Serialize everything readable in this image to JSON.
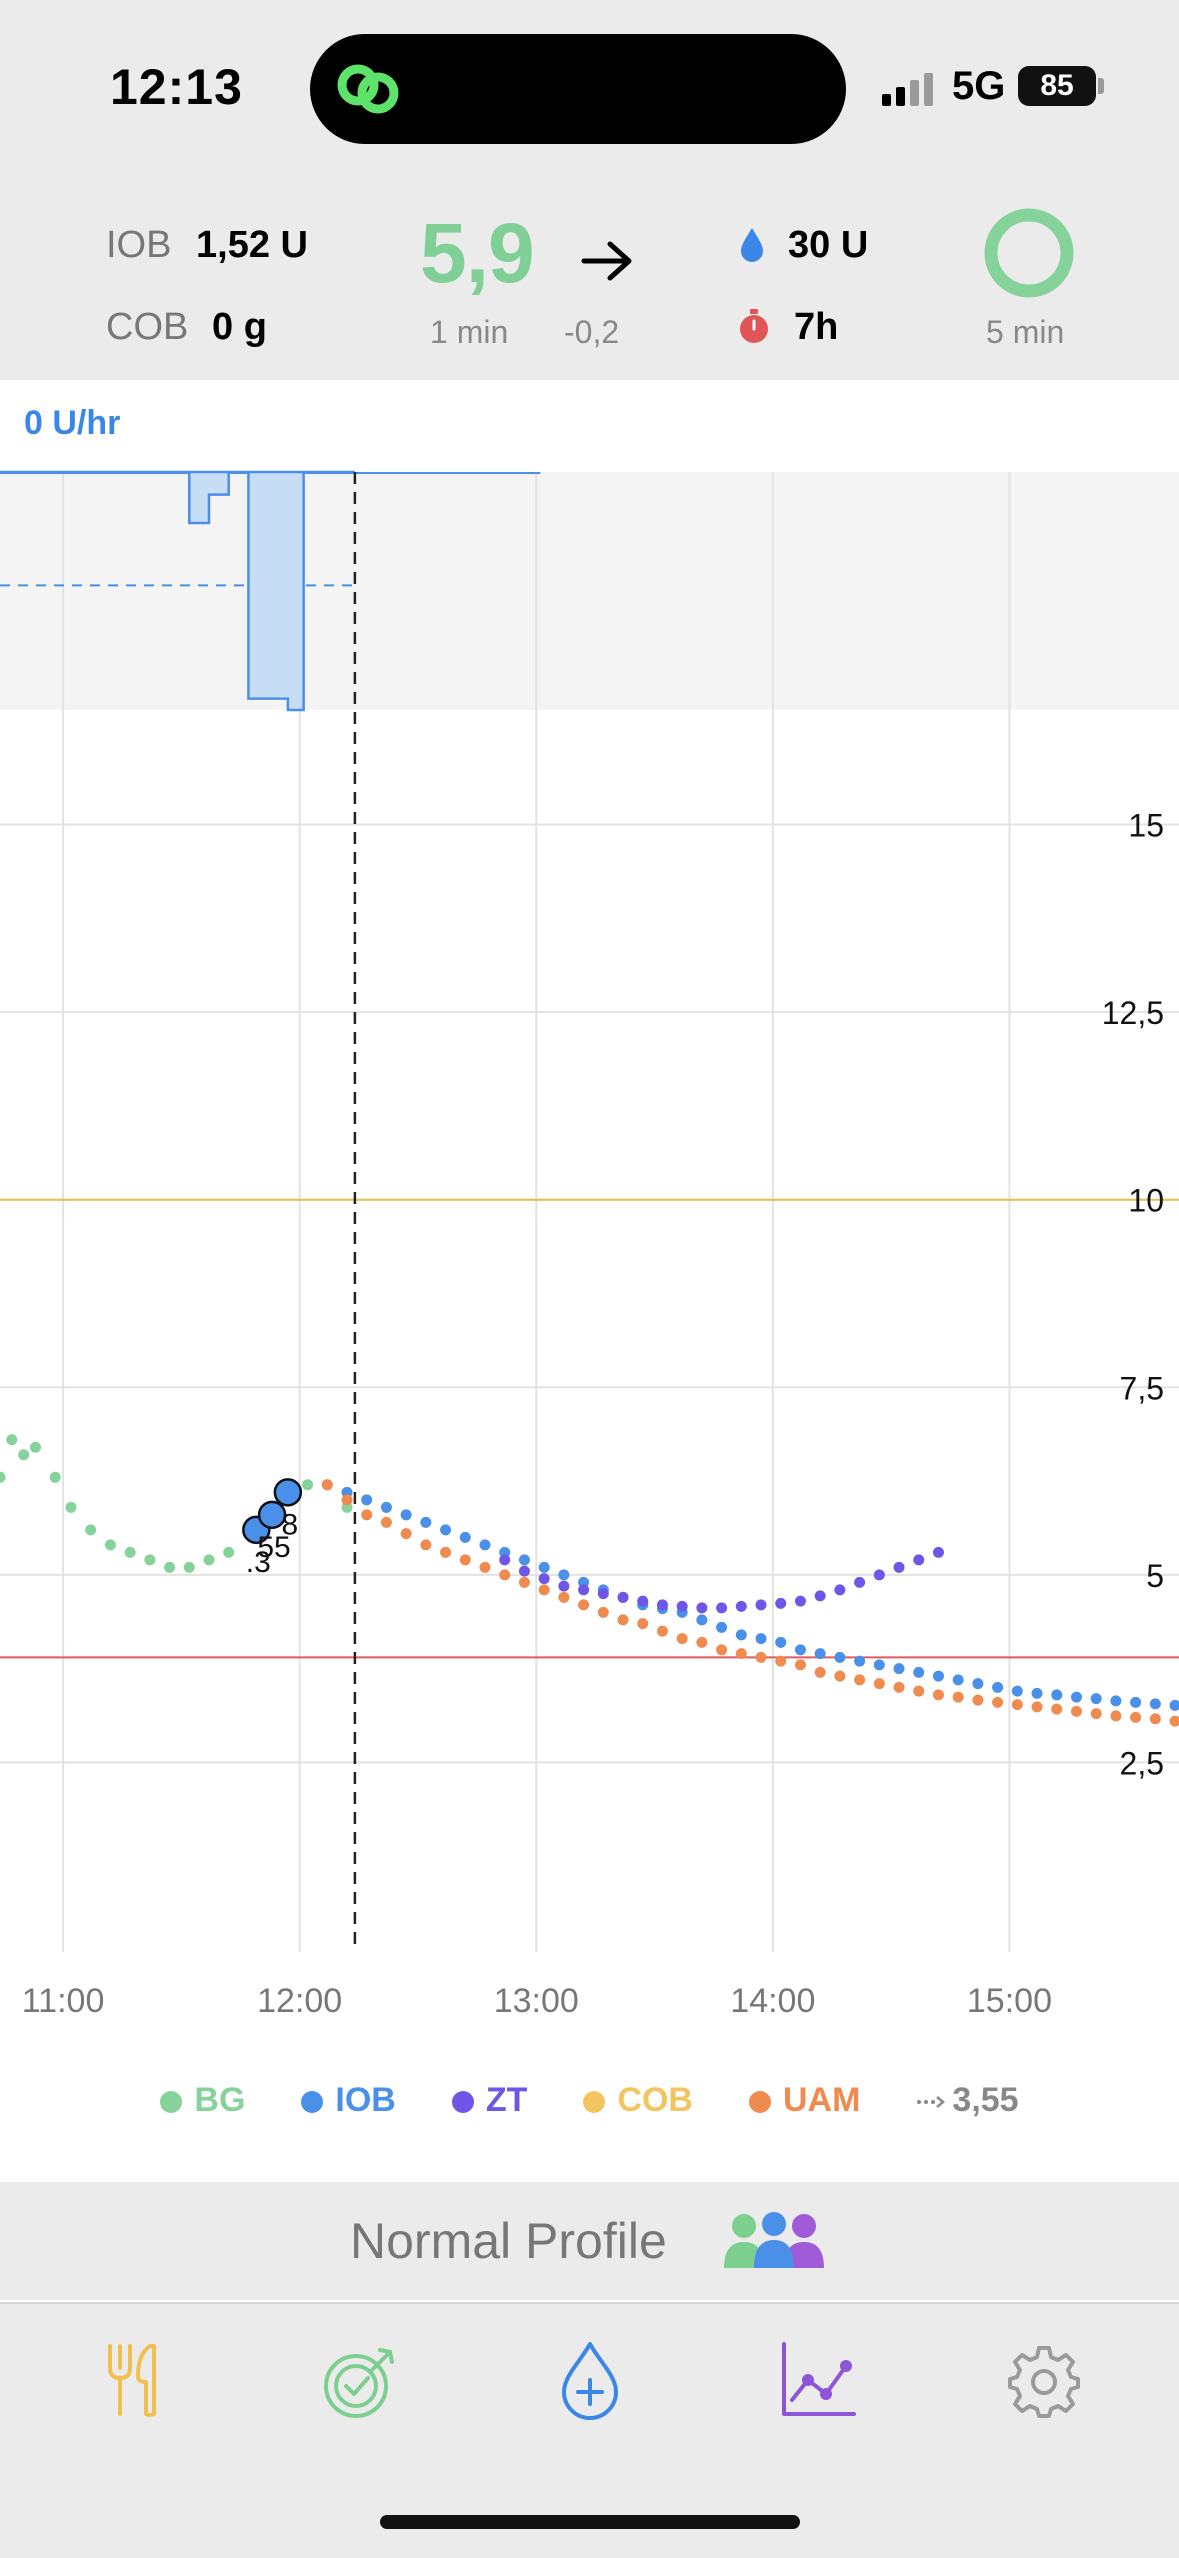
{
  "status_bar": {
    "time": "12:13",
    "network": "5G",
    "battery": "85",
    "island_app": "linked-rings-icon"
  },
  "header": {
    "iob_label": "IOB",
    "iob_value": "1,52 U",
    "cob_label": "COB",
    "cob_value": "0 g",
    "bg_value": "5,9",
    "bg_trend": "flat-arrow-icon",
    "bg_age": "1 min",
    "bg_delta": "-0,2",
    "reservoir": "30 U",
    "cannula_age": "7h",
    "loop_status": "5 min",
    "colors": {
      "bg": "#7fcf97",
      "reservoir": "#3a87e8",
      "cannula": "#e05555",
      "loop": "#86d29b"
    }
  },
  "basal": {
    "rate": "0 U/hr"
  },
  "chart_data": {
    "type": "scatter",
    "x_ticks": [
      "11:00",
      "12:00",
      "13:00",
      "14:00",
      "15:00"
    ],
    "y_ticks": [
      "15",
      "12,5",
      "10",
      "7,5",
      "5",
      "2,5"
    ],
    "ylim": [
      0,
      16.5
    ],
    "xlim": [
      "10:44",
      "15:43"
    ],
    "now": "12:14",
    "target_high": 10,
    "target_low": 3.9,
    "grid": true,
    "series": [
      {
        "name": "BG",
        "color": "#86d29b",
        "x": [
          "10:44",
          "10:47",
          "10:50",
          "10:53",
          "10:58",
          "11:02",
          "11:07",
          "11:12",
          "11:17",
          "11:22",
          "11:27",
          "11:32",
          "11:37",
          "11:42",
          "11:47",
          "11:52",
          "11:57",
          "12:02",
          "12:07",
          "12:12"
        ],
        "y": [
          6.3,
          6.8,
          6.6,
          6.7,
          6.3,
          5.9,
          5.6,
          5.4,
          5.3,
          5.2,
          5.1,
          5.1,
          5.2,
          5.3,
          5.6,
          5.8,
          6.0,
          6.2,
          6.2,
          5.9
        ]
      },
      {
        "name": "IOB",
        "color": "#4a8fe8",
        "x": [
          "12:12",
          "12:17",
          "12:22",
          "12:27",
          "12:32",
          "12:37",
          "12:42",
          "12:47",
          "12:52",
          "12:57",
          "13:02",
          "13:07",
          "13:12",
          "13:17",
          "13:22",
          "13:27",
          "13:32",
          "13:37",
          "13:42",
          "13:47",
          "13:52",
          "13:57",
          "14:02",
          "14:07",
          "14:12",
          "14:17",
          "14:22",
          "14:27",
          "14:32",
          "14:37",
          "14:42",
          "14:47",
          "14:52",
          "14:57",
          "15:02",
          "15:07",
          "15:12",
          "15:17",
          "15:22",
          "15:27",
          "15:32",
          "15:37",
          "15:42"
        ],
        "y": [
          6.1,
          6.0,
          5.9,
          5.8,
          5.7,
          5.6,
          5.5,
          5.4,
          5.3,
          5.2,
          5.1,
          5.0,
          4.9,
          4.8,
          4.7,
          4.6,
          4.55,
          4.5,
          4.4,
          4.3,
          4.2,
          4.15,
          4.1,
          4.0,
          3.95,
          3.9,
          3.85,
          3.8,
          3.75,
          3.7,
          3.65,
          3.6,
          3.55,
          3.5,
          3.45,
          3.42,
          3.4,
          3.37,
          3.35,
          3.32,
          3.3,
          3.28,
          3.26
        ]
      },
      {
        "name": "ZT",
        "color": "#6f56e6",
        "x": [
          "12:52",
          "12:57",
          "13:02",
          "13:07",
          "13:12",
          "13:17",
          "13:22",
          "13:27",
          "13:32",
          "13:37",
          "13:42",
          "13:47",
          "13:52",
          "13:57",
          "14:02",
          "14:07",
          "14:12",
          "14:17",
          "14:22",
          "14:27",
          "14:32",
          "14:37",
          "14:42"
        ],
        "y": [
          5.2,
          5.05,
          4.95,
          4.85,
          4.8,
          4.75,
          4.7,
          4.65,
          4.6,
          4.58,
          4.56,
          4.56,
          4.58,
          4.6,
          4.62,
          4.65,
          4.72,
          4.8,
          4.9,
          5.0,
          5.1,
          5.2,
          5.3
        ]
      },
      {
        "name": "COB",
        "color": "#f3c561",
        "x": [],
        "y": []
      },
      {
        "name": "UAM",
        "color": "#ef8b4e",
        "x": [
          "12:07",
          "12:12",
          "12:17",
          "12:22",
          "12:27",
          "12:32",
          "12:37",
          "12:42",
          "12:47",
          "12:52",
          "12:57",
          "13:02",
          "13:07",
          "13:12",
          "13:17",
          "13:22",
          "13:27",
          "13:32",
          "13:37",
          "13:42",
          "13:47",
          "13:52",
          "13:57",
          "14:02",
          "14:07",
          "14:12",
          "14:17",
          "14:22",
          "14:27",
          "14:32",
          "14:37",
          "14:42",
          "14:47",
          "14:52",
          "14:57",
          "15:02",
          "15:07",
          "15:12",
          "15:17",
          "15:22",
          "15:27",
          "15:32",
          "15:37",
          "15:42"
        ],
        "y": [
          6.2,
          6.0,
          5.8,
          5.7,
          5.55,
          5.4,
          5.3,
          5.2,
          5.1,
          5.0,
          4.9,
          4.8,
          4.7,
          4.6,
          4.5,
          4.4,
          4.35,
          4.25,
          4.15,
          4.1,
          4.0,
          3.95,
          3.9,
          3.85,
          3.8,
          3.7,
          3.65,
          3.6,
          3.55,
          3.5,
          3.45,
          3.4,
          3.37,
          3.33,
          3.3,
          3.27,
          3.24,
          3.21,
          3.18,
          3.15,
          3.12,
          3.1,
          3.08,
          3.05
        ]
      }
    ],
    "bolus": [
      {
        "x": "11:49",
        "y": 5.6
      },
      {
        "x": "11:53",
        "y": 5.8
      },
      {
        "x": "11:57",
        "y": 6.1
      }
    ],
    "bolus_labels": [
      ".3",
      "55",
      "8"
    ],
    "basal": {
      "scheduled_rate": 1.0,
      "scheduled_until": "12:14",
      "actual": [
        {
          "from": "10:44",
          "to": "11:32",
          "rate": 0
        },
        {
          "from": "11:32",
          "to": "11:37",
          "rate": 0.45
        },
        {
          "from": "11:37",
          "to": "11:42",
          "rate": 0.2
        },
        {
          "from": "11:42",
          "to": "11:47",
          "rate": 0
        },
        {
          "from": "11:47",
          "to": "11:57",
          "rate": 2.0
        },
        {
          "from": "11:57",
          "to": "12:01",
          "rate": 2.1
        },
        {
          "from": "12:01",
          "to": "12:14",
          "rate": 0
        }
      ],
      "max": 2.1
    }
  },
  "legend": {
    "items": [
      {
        "label": "BG",
        "color": "#86d29b"
      },
      {
        "label": "IOB",
        "color": "#4a8fe8"
      },
      {
        "label": "ZT",
        "color": "#6f56e6"
      },
      {
        "label": "COB",
        "color": "#f3c561"
      },
      {
        "label": "UAM",
        "color": "#ef8b4e"
      }
    ],
    "eventual_value": "3,55"
  },
  "profile": {
    "name": "Normal Profile",
    "icon": "people-group-icon"
  },
  "tabs": [
    {
      "label": "carbs",
      "icon": "fork-knife-icon",
      "color": "#f1c04f"
    },
    {
      "label": "targets",
      "icon": "target-icon",
      "color": "#7ccf8e"
    },
    {
      "label": "bolus",
      "icon": "drop-plus-icon",
      "color": "#3a87e8"
    },
    {
      "label": "charts",
      "icon": "line-chart-icon",
      "color": "#8e55d6"
    },
    {
      "label": "settings",
      "icon": "gear-icon",
      "color": "#9a9a9a"
    }
  ]
}
